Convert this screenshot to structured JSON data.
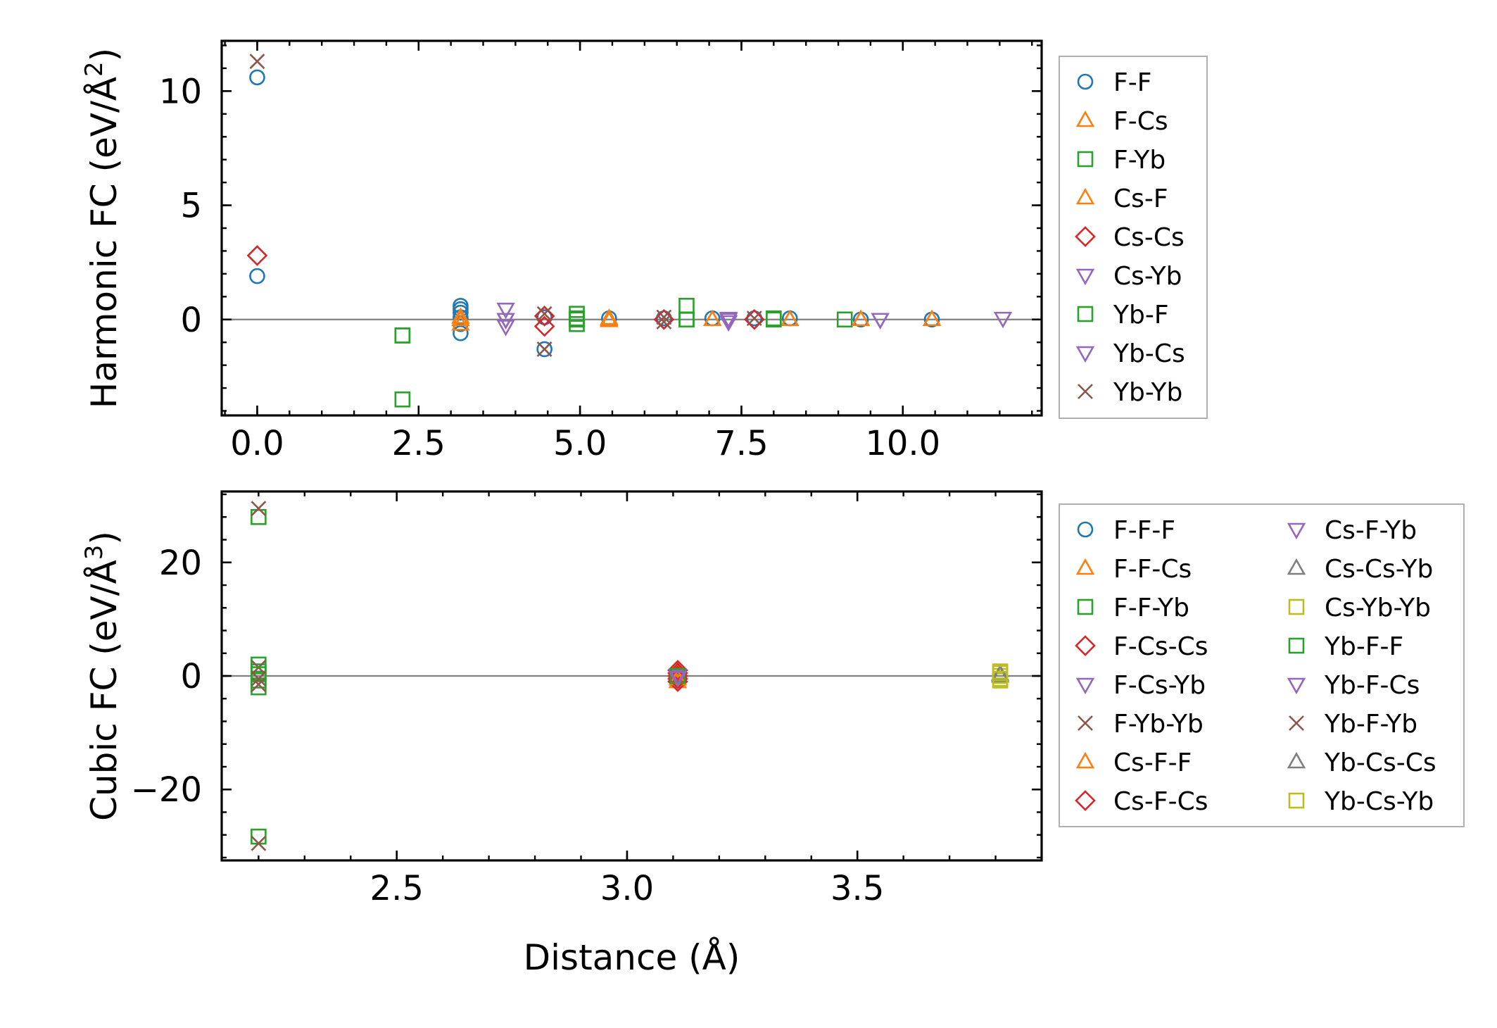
{
  "colors": {
    "F-F": "#1f77b4",
    "F-Cs": "#ff7f0e",
    "F-Yb": "#2ca02c",
    "Cs-F": "#ff7f0e",
    "Cs-Cs": "#d62728",
    "Cs-Yb": "#9467bd",
    "Yb-F": "#2ca02c",
    "Yb-Cs": "#9467bd",
    "Yb-Yb": "#8c564b",
    "F-F-F": "#1f77b4",
    "F-F-Cs": "#ff7f0e",
    "F-F-Yb": "#2ca02c",
    "F-Cs-Cs": "#d62728",
    "F-Cs-Yb": "#9467bd",
    "F-Yb-Yb": "#8c564b",
    "Cs-F-F": "#ff7f0e",
    "Cs-F-Cs": "#d62728",
    "Cs-F-Yb": "#9467bd",
    "Cs-Cs-Yb": "#7f7f7f",
    "Cs-Yb-Yb": "#bcbd22",
    "Yb-F-F": "#2ca02c",
    "Yb-F-Cs": "#9467bd",
    "Yb-F-Yb": "#8c564b",
    "Yb-Cs-Cs": "#7f7f7f",
    "Yb-Cs-Yb": "#bcbd22"
  },
  "chart_data": [
    {
      "type": "scatter",
      "ylabel_main": "Harmonic FC (eV/Å",
      "ylabel_sup": "2",
      "ylabel_tail": ")",
      "xlabel": "",
      "xlim": [
        -0.55,
        12.15
      ],
      "ylim": [
        -4.2,
        12.2
      ],
      "xticks": [
        0.0,
        2.5,
        5.0,
        7.5,
        10.0
      ],
      "xtick_labels": [
        "0.0",
        "2.5",
        "5.0",
        "7.5",
        "10.0"
      ],
      "yticks": [
        0,
        5,
        10
      ],
      "ytick_labels": [
        "0",
        "5",
        "10"
      ],
      "zero_line": true,
      "series": [
        {
          "name": "F-F",
          "marker": "circle",
          "x": [
            0,
            0,
            3.15,
            3.15,
            3.15,
            3.15,
            3.15,
            3.15,
            4.45,
            4.45,
            5.45,
            6.3,
            7.05,
            7.7,
            8.25,
            9.35,
            10.45
          ],
          "y": [
            10.6,
            1.9,
            0.6,
            0.45,
            0.3,
            0.1,
            -0.2,
            -0.6,
            -1.3,
            0.1,
            0.05,
            0.05,
            0.05,
            0.05,
            0.05,
            0.0,
            0.0
          ]
        },
        {
          "name": "F-Cs",
          "marker": "triangle-up",
          "x": [
            3.15,
            3.15,
            5.45,
            5.45,
            7.05,
            8.25,
            9.35,
            10.45
          ],
          "y": [
            0.1,
            -0.2,
            0.05,
            -0.05,
            0.0,
            0.0,
            0.0,
            0.0
          ]
        },
        {
          "name": "F-Yb",
          "marker": "square",
          "x": [
            2.25,
            2.25,
            4.95,
            4.95,
            4.95,
            6.65,
            6.65,
            8.0,
            9.1
          ],
          "y": [
            -0.7,
            -3.5,
            0.25,
            0.05,
            -0.2,
            0.6,
            0.0,
            0.05,
            0.0
          ]
        },
        {
          "name": "Cs-F",
          "marker": "triangle-up",
          "x": [
            3.15,
            5.45,
            7.05,
            8.25,
            9.35,
            10.45
          ],
          "y": [
            0.0,
            0.0,
            0.0,
            0.0,
            0.0,
            0.0
          ]
        },
        {
          "name": "Cs-Cs",
          "marker": "diamond",
          "x": [
            0,
            4.45,
            4.45,
            6.3,
            7.7
          ],
          "y": [
            2.8,
            0.15,
            -0.3,
            0.0,
            0.0
          ]
        },
        {
          "name": "Cs-Yb",
          "marker": "triangle-down",
          "x": [
            3.85,
            3.85,
            3.85,
            7.3,
            7.3,
            9.65,
            11.55
          ],
          "y": [
            0.45,
            0.0,
            -0.3,
            0.05,
            -0.1,
            0.0,
            0.05
          ]
        },
        {
          "name": "Yb-F",
          "marker": "square",
          "x": [
            2.25,
            4.95,
            6.65,
            8.0
          ],
          "y": [
            -0.7,
            0.0,
            0.0,
            0.0
          ]
        },
        {
          "name": "Yb-Cs",
          "marker": "triangle-down",
          "x": [
            3.85,
            7.3,
            9.65
          ],
          "y": [
            0.0,
            0.0,
            0.0
          ]
        },
        {
          "name": "Yb-Yb",
          "marker": "x",
          "x": [
            0,
            4.45,
            4.45,
            6.3,
            6.3,
            7.7
          ],
          "y": [
            11.3,
            0.25,
            -1.3,
            0.1,
            -0.1,
            0.05
          ]
        }
      ],
      "legend": [
        "F-F",
        "F-Cs",
        "F-Yb",
        "Cs-F",
        "Cs-Cs",
        "Cs-Yb",
        "Yb-F",
        "Yb-Cs",
        "Yb-Yb"
      ]
    },
    {
      "type": "scatter",
      "ylabel_main": "Cubic FC (eV/Å",
      "ylabel_sup": "3",
      "ylabel_tail": ")",
      "xlabel": "Distance (Å)",
      "xlim": [
        2.12,
        3.9
      ],
      "ylim": [
        -32.5,
        32.5
      ],
      "xticks": [
        2.5,
        3.0,
        3.5
      ],
      "xtick_labels": [
        "2.5",
        "3.0",
        "3.5"
      ],
      "yticks": [
        -20,
        0,
        20
      ],
      "ytick_labels": [
        "−20",
        "0",
        "20"
      ],
      "zero_line": true,
      "series": [
        {
          "name": "F-F-F",
          "marker": "circle",
          "x": [],
          "y": []
        },
        {
          "name": "F-F-Cs",
          "marker": "triangle-up",
          "x": [
            3.11,
            3.11
          ],
          "y": [
            -1.0,
            0.8
          ]
        },
        {
          "name": "F-F-Yb",
          "marker": "square",
          "x": [
            2.2,
            2.2,
            2.2,
            2.2,
            2.2,
            2.2
          ],
          "y": [
            28.0,
            -28.3,
            2.0,
            0.8,
            -0.8,
            -2.0
          ]
        },
        {
          "name": "F-Cs-Cs",
          "marker": "diamond",
          "x": [
            3.11,
            3.11,
            3.11
          ],
          "y": [
            1.0,
            0.0,
            -1.0
          ]
        },
        {
          "name": "F-Cs-Yb",
          "marker": "triangle-down",
          "x": [
            3.11
          ],
          "y": [
            0.2
          ]
        },
        {
          "name": "F-Yb-Yb",
          "marker": "x",
          "x": [
            2.2,
            2.2,
            2.2,
            2.2
          ],
          "y": [
            29.5,
            -29.5,
            1.5,
            -1.5
          ]
        },
        {
          "name": "Cs-F-F",
          "marker": "triangle-up",
          "x": [
            3.11
          ],
          "y": [
            -0.5
          ]
        },
        {
          "name": "Cs-F-Cs",
          "marker": "diamond",
          "x": [
            3.11,
            3.11
          ],
          "y": [
            0.5,
            -0.5
          ]
        },
        {
          "name": "Cs-F-Yb",
          "marker": "triangle-down",
          "x": [
            3.11
          ],
          "y": [
            0.0
          ]
        },
        {
          "name": "Cs-Cs-Yb",
          "marker": "triangle-up",
          "x": [
            3.81
          ],
          "y": [
            0.0
          ]
        },
        {
          "name": "Cs-Yb-Yb",
          "marker": "square",
          "x": [
            3.81,
            3.81,
            3.81
          ],
          "y": [
            0.8,
            0.0,
            -0.8
          ]
        },
        {
          "name": "Yb-F-F",
          "marker": "square",
          "x": [
            2.2,
            3.11
          ],
          "y": [
            0.3,
            0.0
          ]
        },
        {
          "name": "Yb-F-Cs",
          "marker": "triangle-down",
          "x": [
            3.11
          ],
          "y": [
            -0.3
          ]
        },
        {
          "name": "Yb-F-Yb",
          "marker": "x",
          "x": [
            2.2
          ],
          "y": [
            -0.5
          ]
        },
        {
          "name": "Yb-Cs-Cs",
          "marker": "triangle-up",
          "x": [
            3.81
          ],
          "y": [
            0.3
          ]
        },
        {
          "name": "Yb-Cs-Yb",
          "marker": "square",
          "x": [
            3.81,
            3.81
          ],
          "y": [
            0.5,
            -0.5
          ]
        }
      ],
      "legend": [
        "F-F-F",
        "F-F-Cs",
        "F-F-Yb",
        "F-Cs-Cs",
        "F-Cs-Yb",
        "F-Yb-Yb",
        "Cs-F-F",
        "Cs-F-Cs",
        "Cs-F-Yb",
        "Cs-Cs-Yb",
        "Cs-Yb-Yb",
        "Yb-F-F",
        "Yb-F-Cs",
        "Yb-F-Yb",
        "Yb-Cs-Cs",
        "Yb-Cs-Yb"
      ]
    }
  ]
}
